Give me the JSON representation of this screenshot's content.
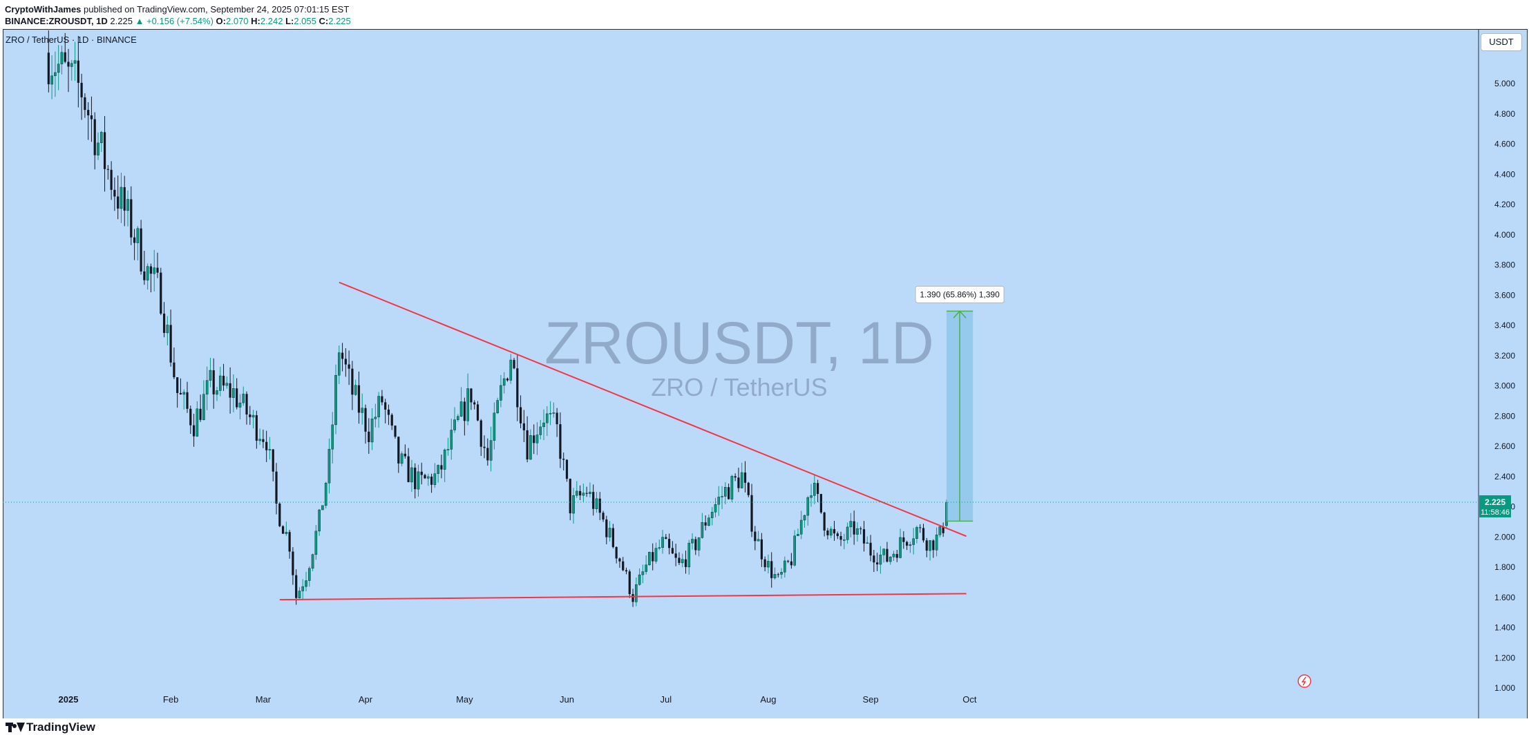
{
  "header": {
    "author": "CryptoWithJames",
    "published_text": "published on TradingView.com, September 24, 2025 07:01:15 EST",
    "symbol": "BINANCE:ZROUSDT, 1D",
    "last": "2.225",
    "change": "▲ +0.156 (+7.54%)",
    "open_label": "O:",
    "open": "2.070",
    "high_label": "H:",
    "high": "2.242",
    "low_label": "L:",
    "low": "2.055",
    "close_label": "C:",
    "close": "2.225"
  },
  "legend_text": "ZRO / TetherUS · 1D · BINANCE",
  "watermark": {
    "main": "ZROUSDT, 1D",
    "sub": "ZRO / TetherUS"
  },
  "currency": "USDT",
  "brand": "TradingView",
  "price_box": {
    "price": "2.225",
    "countdown": "11:58:46"
  },
  "measure_label": "1.390 (65.86%) 1,390",
  "colors": {
    "background": "#bbdafa",
    "up": "#089981",
    "down": "#131722",
    "trendline": "#f23645",
    "target_fill": "rgba(120,190,225,0.55)",
    "target_line": "#4caf50"
  },
  "chart_data": {
    "type": "candlestick",
    "y_axis": {
      "ticks": [
        "1.000",
        "1.200",
        "1.400",
        "1.600",
        "1.800",
        "2.000",
        "2.200",
        "2.400",
        "2.600",
        "2.800",
        "3.000",
        "3.200",
        "3.400",
        "3.600",
        "3.800",
        "4.000",
        "4.200",
        "4.400",
        "4.600",
        "4.800",
        "5.000"
      ],
      "range": [
        0.98,
        5.3
      ],
      "side": "right"
    },
    "x_axis": {
      "ticks": [
        {
          "label": "2025",
          "date": "2025-01-01"
        },
        {
          "label": "Feb",
          "date": "2025-02-01"
        },
        {
          "label": "Mar",
          "date": "2025-03-01"
        },
        {
          "label": "Apr",
          "date": "2025-04-01"
        },
        {
          "label": "May",
          "date": "2025-05-01"
        },
        {
          "label": "Jun",
          "date": "2025-06-01"
        },
        {
          "label": "Jul",
          "date": "2025-07-01"
        },
        {
          "label": "Aug",
          "date": "2025-08-01"
        },
        {
          "label": "Sep",
          "date": "2025-09-01"
        },
        {
          "label": "Oct",
          "date": "2025-10-01"
        }
      ]
    },
    "anchors": [
      {
        "date": "2024-12-25",
        "close": 5.2
      },
      {
        "date": "2025-01-05",
        "close": 4.95
      },
      {
        "date": "2025-01-10",
        "close": 4.6
      },
      {
        "date": "2025-01-15",
        "close": 4.3
      },
      {
        "date": "2025-01-20",
        "close": 4.05
      },
      {
        "date": "2025-01-25",
        "close": 3.75
      },
      {
        "date": "2025-01-29",
        "close": 3.6
      },
      {
        "date": "2025-02-03",
        "close": 2.95
      },
      {
        "date": "2025-02-08",
        "close": 2.75
      },
      {
        "date": "2025-02-13",
        "close": 3.0
      },
      {
        "date": "2025-02-20",
        "close": 2.95
      },
      {
        "date": "2025-02-26",
        "close": 2.75
      },
      {
        "date": "2025-03-02",
        "close": 2.65
      },
      {
        "date": "2025-03-05",
        "close": 2.2
      },
      {
        "date": "2025-03-09",
        "close": 1.95
      },
      {
        "date": "2025-03-11",
        "close": 1.6
      },
      {
        "date": "2025-03-14",
        "close": 1.75
      },
      {
        "date": "2025-03-18",
        "close": 2.1
      },
      {
        "date": "2025-03-21",
        "close": 2.5
      },
      {
        "date": "2025-03-24",
        "close": 3.25
      },
      {
        "date": "2025-03-28",
        "close": 2.95
      },
      {
        "date": "2025-04-02",
        "close": 2.7
      },
      {
        "date": "2025-04-06",
        "close": 2.9
      },
      {
        "date": "2025-04-11",
        "close": 2.5
      },
      {
        "date": "2025-04-17",
        "close": 2.35
      },
      {
        "date": "2025-04-23",
        "close": 2.4
      },
      {
        "date": "2025-04-29",
        "close": 2.75
      },
      {
        "date": "2025-05-03",
        "close": 2.95
      },
      {
        "date": "2025-05-08",
        "close": 2.5
      },
      {
        "date": "2025-05-12",
        "close": 2.95
      },
      {
        "date": "2025-05-15",
        "close": 3.2
      },
      {
        "date": "2025-05-20",
        "close": 2.6
      },
      {
        "date": "2025-05-25",
        "close": 2.8
      },
      {
        "date": "2025-05-29",
        "close": 2.7
      },
      {
        "date": "2025-06-02",
        "close": 2.2
      },
      {
        "date": "2025-06-07",
        "close": 2.3
      },
      {
        "date": "2025-06-12",
        "close": 2.1
      },
      {
        "date": "2025-06-17",
        "close": 1.85
      },
      {
        "date": "2025-06-21",
        "close": 1.6
      },
      {
        "date": "2025-06-25",
        "close": 1.8
      },
      {
        "date": "2025-06-30",
        "close": 1.95
      },
      {
        "date": "2025-07-05",
        "close": 1.8
      },
      {
        "date": "2025-07-10",
        "close": 1.95
      },
      {
        "date": "2025-07-14",
        "close": 2.15
      },
      {
        "date": "2025-07-19",
        "close": 2.3
      },
      {
        "date": "2025-07-24",
        "close": 2.4
      },
      {
        "date": "2025-07-28",
        "close": 2.0
      },
      {
        "date": "2025-08-01",
        "close": 1.8
      },
      {
        "date": "2025-08-04",
        "close": 1.7
      },
      {
        "date": "2025-08-08",
        "close": 1.85
      },
      {
        "date": "2025-08-11",
        "close": 2.1
      },
      {
        "date": "2025-08-14",
        "close": 2.35
      },
      {
        "date": "2025-08-18",
        "close": 2.1
      },
      {
        "date": "2025-08-22",
        "close": 1.95
      },
      {
        "date": "2025-08-27",
        "close": 2.05
      },
      {
        "date": "2025-09-01",
        "close": 1.9
      },
      {
        "date": "2025-09-06",
        "close": 1.85
      },
      {
        "date": "2025-09-10",
        "close": 1.95
      },
      {
        "date": "2025-09-15",
        "close": 2.05
      },
      {
        "date": "2025-09-19",
        "close": 1.95
      },
      {
        "date": "2025-09-22",
        "close": 2.0
      },
      {
        "date": "2025-09-23",
        "close": 2.07
      },
      {
        "date": "2025-09-24",
        "close": 2.225
      }
    ],
    "last_candle": {
      "date": "2025-09-24",
      "open": 2.07,
      "high": 2.242,
      "low": 2.055,
      "close": 2.225
    },
    "trendlines": [
      {
        "name": "descending-resistance",
        "from": {
          "date": "2025-03-24",
          "price": 3.68
        },
        "to": {
          "date": "2025-09-30",
          "price": 2.0
        }
      },
      {
        "name": "horizontal-support",
        "from": {
          "date": "2025-03-06",
          "price": 1.58
        },
        "to": {
          "date": "2025-09-30",
          "price": 1.62
        }
      }
    ],
    "target_box": {
      "from_date": "2025-09-24",
      "to_date": "2025-10-02",
      "bottom": 2.1,
      "top": 3.49
    },
    "current_price": 2.225
  }
}
